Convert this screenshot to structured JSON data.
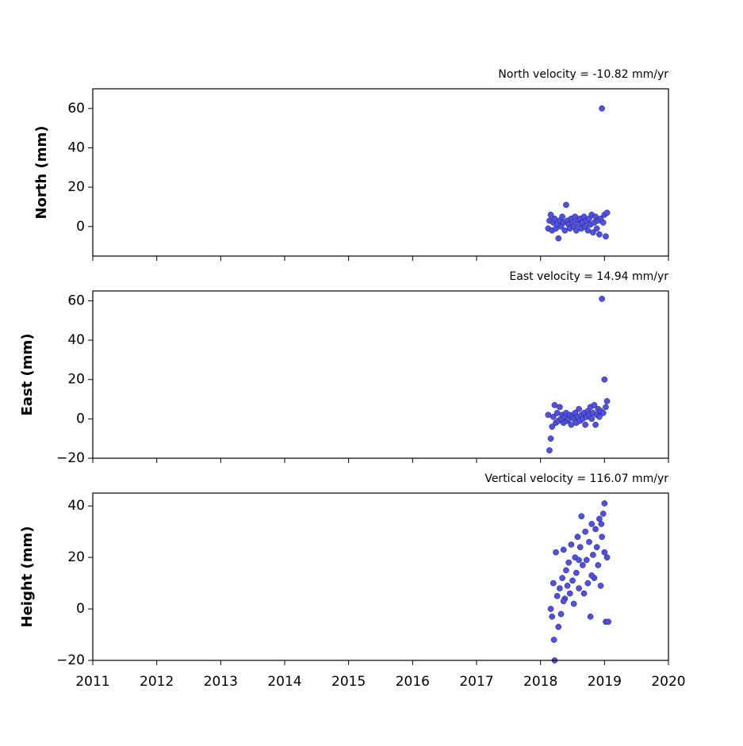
{
  "chart_data": [
    {
      "type": "scatter",
      "title": "North velocity = -10.82 mm/yr",
      "y_label": "North (mm)",
      "color": "#4f4ff0",
      "x": [
        2018.12,
        2018.14,
        2018.16,
        2018.18,
        2018.2,
        2018.22,
        2018.24,
        2018.26,
        2018.28,
        2018.3,
        2018.32,
        2018.34,
        2018.36,
        2018.38,
        2018.4,
        2018.42,
        2018.44,
        2018.46,
        2018.48,
        2018.5,
        2018.52,
        2018.54,
        2018.56,
        2018.58,
        2018.6,
        2018.62,
        2018.64,
        2018.66,
        2018.68,
        2018.7,
        2018.72,
        2018.74,
        2018.76,
        2018.78,
        2018.8,
        2018.82,
        2018.84,
        2018.86,
        2018.88,
        2018.9,
        2018.92,
        2018.94,
        2018.96,
        2018.98,
        2019.0,
        2019.02,
        2019.04
      ],
      "values": [
        -1,
        3,
        6,
        -2,
        2,
        4,
        -1,
        1,
        -6,
        3,
        0,
        5,
        2,
        -2,
        11,
        3,
        1,
        -1,
        4,
        2,
        0,
        5,
        -2,
        3,
        1,
        4,
        -1,
        2,
        5,
        0,
        3,
        -2,
        4,
        1,
        6,
        -3,
        2,
        5,
        -1,
        3,
        -4,
        4,
        60,
        2,
        6,
        -5,
        7
      ],
      "xlim": [
        2011,
        2020
      ],
      "xticks": [
        2011,
        2012,
        2013,
        2014,
        2015,
        2016,
        2017,
        2018,
        2019,
        2020
      ],
      "ylim": [
        -15,
        70
      ],
      "yticks": [
        0,
        20,
        40,
        60
      ]
    },
    {
      "type": "scatter",
      "title": "East velocity = 14.94 mm/yr",
      "y_label": "East (mm)",
      "color": "#4f4ff0",
      "x": [
        2018.12,
        2018.14,
        2018.16,
        2018.18,
        2018.2,
        2018.22,
        2018.24,
        2018.26,
        2018.28,
        2018.3,
        2018.32,
        2018.34,
        2018.36,
        2018.38,
        2018.4,
        2018.42,
        2018.44,
        2018.46,
        2018.48,
        2018.5,
        2018.52,
        2018.54,
        2018.56,
        2018.58,
        2018.6,
        2018.62,
        2018.64,
        2018.66,
        2018.68,
        2018.7,
        2018.72,
        2018.74,
        2018.76,
        2018.78,
        2018.8,
        2018.82,
        2018.84,
        2018.86,
        2018.88,
        2018.9,
        2018.92,
        2018.94,
        2018.96,
        2018.98,
        2019.0,
        2019.02,
        2019.04
      ],
      "values": [
        2,
        -16,
        -10,
        -4,
        1,
        7,
        -2,
        3,
        -1,
        6,
        0,
        2,
        -2,
        1,
        3,
        -1,
        0,
        2,
        -3,
        1,
        0,
        3,
        -2,
        1,
        5,
        -1,
        2,
        0,
        3,
        -3,
        1,
        4,
        2,
        6,
        0,
        3,
        7,
        -3,
        2,
        5,
        1,
        4,
        61,
        3,
        20,
        6,
        9
      ],
      "xlim": [
        2011,
        2020
      ],
      "xticks": [
        2011,
        2012,
        2013,
        2014,
        2015,
        2016,
        2017,
        2018,
        2019,
        2020
      ],
      "ylim": [
        -20,
        65
      ],
      "yticks": [
        {
          "value": -20,
          "label": "−20"
        },
        0,
        20,
        40,
        60
      ]
    },
    {
      "type": "scatter",
      "title": "Vertical velocity = 116.07 mm/yr",
      "y_label": "Height (mm)",
      "color": "#4f4ff0",
      "x": [
        2018.16,
        2018.18,
        2018.2,
        2018.22,
        2018.24,
        2018.26,
        2018.28,
        2018.3,
        2018.32,
        2018.34,
        2018.36,
        2018.38,
        2018.4,
        2018.42,
        2018.44,
        2018.46,
        2018.48,
        2018.5,
        2018.52,
        2018.54,
        2018.56,
        2018.58,
        2018.6,
        2018.62,
        2018.64,
        2018.66,
        2018.68,
        2018.7,
        2018.72,
        2018.74,
        2018.76,
        2018.78,
        2018.8,
        2018.82,
        2018.84,
        2018.86,
        2018.88,
        2018.9,
        2018.92,
        2018.94,
        2018.96,
        2018.98,
        2019.0,
        2019.02,
        2019.04,
        2019.06,
        2018.21,
        2018.36,
        2018.6,
        2018.8,
        2018.95,
        2019.0
      ],
      "values": [
        0,
        -3,
        10,
        -20,
        22,
        5,
        -7,
        8,
        -2,
        12,
        23,
        4,
        15,
        9,
        18,
        6,
        25,
        11,
        2,
        20,
        14,
        28,
        8,
        24,
        36,
        17,
        6,
        30,
        19,
        10,
        26,
        -3,
        33,
        21,
        12,
        31,
        24,
        17,
        35,
        9,
        28,
        37,
        22,
        -5,
        20,
        -5,
        -12,
        3,
        19,
        13,
        33,
        41
      ],
      "xlim": [
        2011,
        2020
      ],
      "xticks": [
        2011,
        2012,
        2013,
        2014,
        2015,
        2016,
        2017,
        2018,
        2019,
        2020
      ],
      "ylim": [
        -20,
        45
      ],
      "yticks": [
        {
          "value": -20,
          "label": "−20"
        },
        0,
        20,
        40
      ]
    }
  ]
}
